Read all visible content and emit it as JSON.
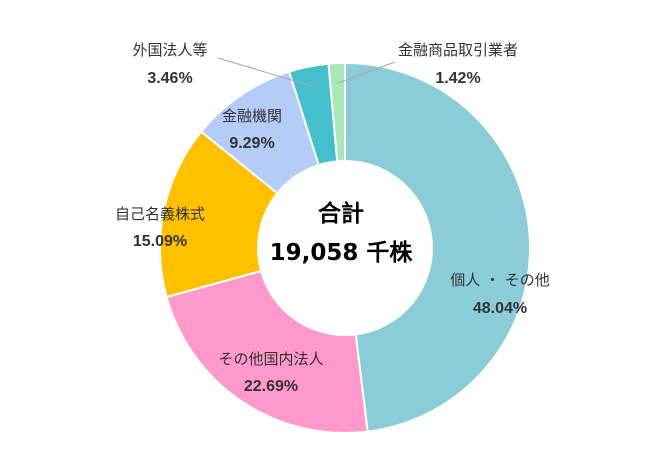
{
  "chart_data": {
    "type": "pie",
    "center_title": "合計",
    "center_total": "19,058 千株",
    "segments": [
      {
        "label": "個人 ・ その他",
        "value": 48.04,
        "pct_label": "48.04%",
        "color": "#8ACDD8"
      },
      {
        "label": "その他国内法人",
        "value": 22.69,
        "pct_label": "22.69%",
        "color": "#FF99CC"
      },
      {
        "label": "自己名義株式",
        "value": 15.09,
        "pct_label": "15.09%",
        "color": "#FFC000"
      },
      {
        "label": "金融機関",
        "value": 9.29,
        "pct_label": "9.29%",
        "color": "#B4CCF7"
      },
      {
        "label": "外国法人等",
        "value": 3.46,
        "pct_label": "3.46%",
        "color": "#45BFCC"
      },
      {
        "label": "金融商品取引業者",
        "value": 1.42,
        "pct_label": "1.42%",
        "color": "#A9E6B8"
      }
    ]
  }
}
